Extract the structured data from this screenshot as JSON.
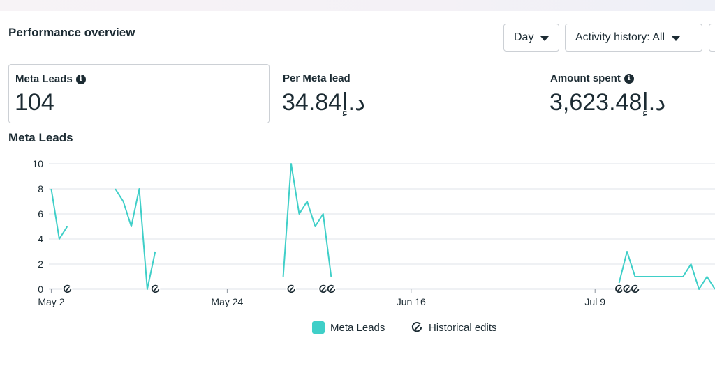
{
  "header": {
    "title": "Performance overview",
    "day_select": "Day",
    "activity_select": "Activity history: All"
  },
  "metrics": {
    "leads": {
      "label": "Meta Leads",
      "value": "104"
    },
    "per_lead": {
      "label": "Per Meta lead",
      "value": "34.84د.إ"
    },
    "spent": {
      "label": "Amount spent",
      "value": "3,623.48د.إ"
    }
  },
  "chart_title": "Meta Leads",
  "legend": {
    "series": "Meta Leads",
    "edits": "Historical edits"
  },
  "icons": {
    "dropdown": "caret-down-icon",
    "info": "info-icon",
    "edit": "historical-edit-icon"
  },
  "colors": {
    "series": "#3fcfc8",
    "grid": "#dfe3e8",
    "text": "#1c2b33"
  },
  "chart_data": {
    "type": "line",
    "title": "Meta Leads",
    "xlabel": "",
    "ylabel": "",
    "ylim": [
      0,
      10
    ],
    "yticks": [
      0,
      2,
      4,
      6,
      8,
      10
    ],
    "xlim": [
      -0.3,
      83
    ],
    "x_tick_labels": [
      {
        "label": "May 2",
        "day": 0
      },
      {
        "label": "May 24",
        "day": 22
      },
      {
        "label": "Jun 16",
        "day": 45
      },
      {
        "label": "Jul 9",
        "day": 68
      }
    ],
    "grid": true,
    "legend_position": "bottom",
    "series": [
      {
        "name": "Meta Leads",
        "color": "#3fcfc8",
        "segments": [
          [
            [
              0,
              8
            ],
            [
              1,
              4
            ],
            [
              2,
              5
            ]
          ],
          [
            [
              8,
              8
            ],
            [
              9,
              7
            ],
            [
              10,
              5
            ],
            [
              11,
              8
            ],
            [
              12,
              0
            ],
            [
              13,
              3
            ]
          ],
          [
            [
              29,
              1
            ],
            [
              30,
              10
            ],
            [
              31,
              6
            ],
            [
              32,
              7
            ],
            [
              33,
              5
            ],
            [
              34,
              6
            ],
            [
              35,
              1
            ]
          ],
          [
            [
              71,
              0.5
            ],
            [
              72,
              3
            ],
            [
              73,
              1
            ],
            [
              74,
              1
            ],
            [
              75,
              1
            ],
            [
              76,
              1
            ],
            [
              77,
              1
            ],
            [
              78,
              1
            ],
            [
              79,
              1
            ],
            [
              80,
              2
            ],
            [
              81,
              0
            ],
            [
              82,
              1
            ],
            [
              83,
              0
            ]
          ]
        ]
      }
    ],
    "historical_edit_days": [
      2,
      13,
      30,
      34,
      35,
      71,
      72,
      73
    ]
  }
}
